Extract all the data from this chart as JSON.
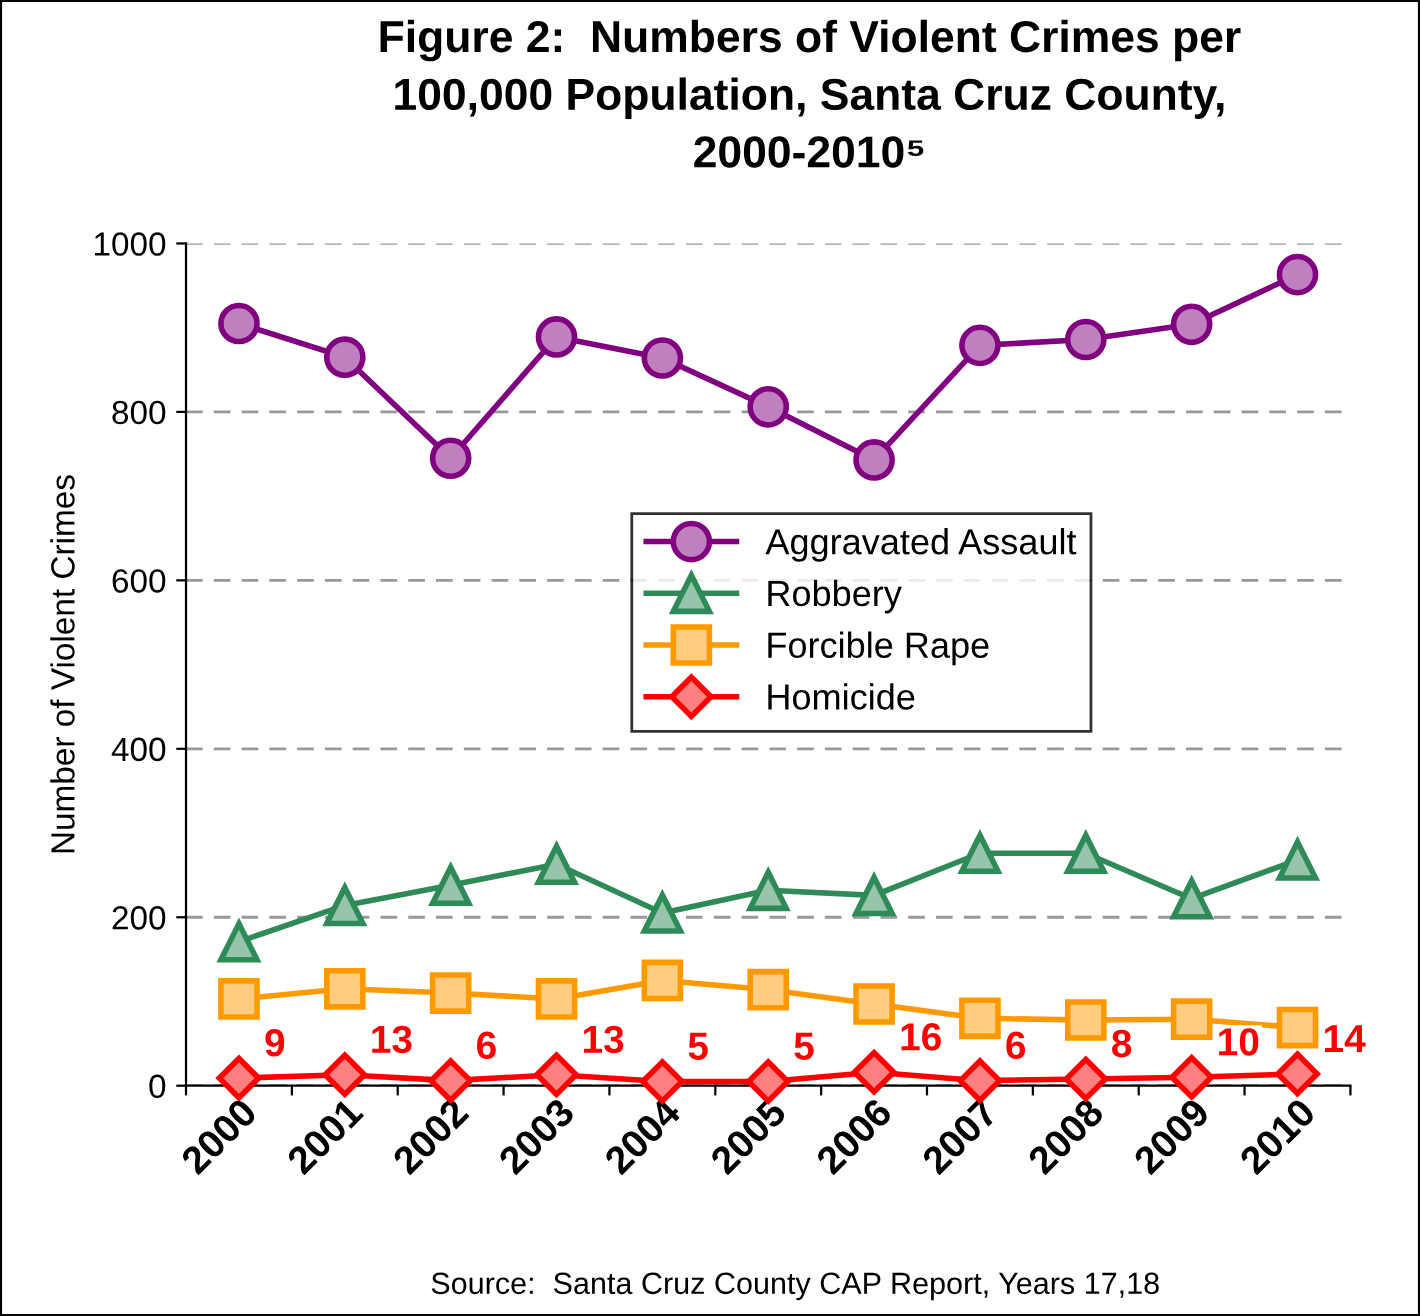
{
  "chart_data": {
    "type": "line",
    "title": "Figure 2:  Numbers of Violent Crimes per\n100,000 Population, Santa Cruz County,\n2000-2010⁵",
    "ylabel": "Number of Violent Crimes",
    "annotations": [
      "Source:  Santa Cruz County CAP Report, Years 17,18"
    ],
    "categories": [
      "2000",
      "2001",
      "2002",
      "2003",
      "2004",
      "2005",
      "2006",
      "2007",
      "2008",
      "2009",
      "2010"
    ],
    "series": [
      {
        "name": "Aggravated Assault",
        "color": "#800080",
        "marker": "circle",
        "values": [
          905,
          865,
          745,
          889,
          864,
          806,
          743,
          879,
          886,
          904,
          963
        ]
      },
      {
        "name": "Robbery",
        "color": "#2e8b57",
        "marker": "triangle",
        "values": [
          171,
          214,
          238,
          263,
          205,
          232,
          226,
          276,
          276,
          222,
          268
        ]
      },
      {
        "name": "Forcible Rape",
        "color": "#ff9900",
        "marker": "square",
        "values": [
          103,
          115,
          110,
          103,
          125,
          114,
          97,
          80,
          78,
          79,
          69
        ]
      },
      {
        "name": "Homicide",
        "color": "#ff0000",
        "marker": "diamond",
        "values": [
          9,
          13,
          6,
          13,
          5,
          5,
          16,
          6,
          8,
          10,
          14
        ],
        "value_labels": [
          "9",
          "13",
          "6",
          "13",
          "5",
          "5",
          "16",
          "6",
          "8",
          "10",
          "14"
        ]
      }
    ],
    "ylim": [
      0,
      1000
    ],
    "yticks": [
      0,
      200,
      400,
      600,
      800,
      1000
    ],
    "grid": "y",
    "legend": "center",
    "line_style": "solid"
  }
}
